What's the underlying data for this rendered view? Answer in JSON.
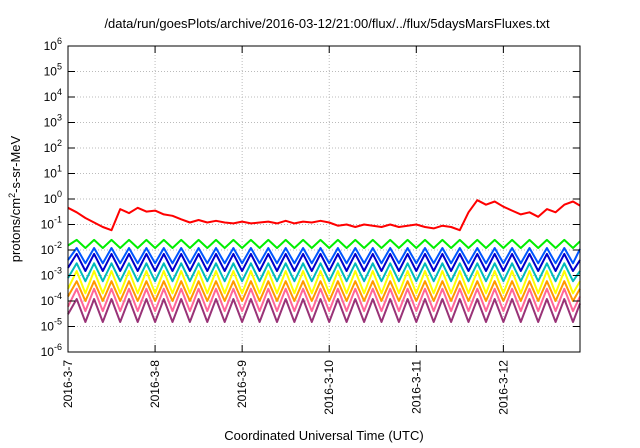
{
  "chart_data": {
    "type": "line",
    "title": "/data/run/goesPlots/archive/2016-03-12/21:00/flux/../flux/5daysMarsFluxes.txt",
    "xlabel": "Coordinated Universal Time (UTC)",
    "ylabel": {
      "prefix": "protons/cm",
      "sup": "2",
      "suffix": "-s-sr-MeV"
    },
    "y_scale": "log",
    "ylim_exp": [
      -6,
      6
    ],
    "y_ticks": [
      {
        "base": "10",
        "exp": "-6"
      },
      {
        "base": "10",
        "exp": "-5"
      },
      {
        "base": "10",
        "exp": "-4"
      },
      {
        "base": "10",
        "exp": "-3"
      },
      {
        "base": "10",
        "exp": "-2"
      },
      {
        "base": "10",
        "exp": "-1"
      },
      {
        "base": "10",
        "exp": "0"
      },
      {
        "base": "10",
        "exp": "1"
      },
      {
        "base": "10",
        "exp": "2"
      },
      {
        "base": "10",
        "exp": "3"
      },
      {
        "base": "10",
        "exp": "4"
      },
      {
        "base": "10",
        "exp": "5"
      },
      {
        "base": "10",
        "exp": "6"
      }
    ],
    "x_ticks": [
      "2016-3-7",
      "2016-3-8",
      "2016-3-9",
      "2016-3-10",
      "2016-3-11",
      "2016-3-12"
    ],
    "x_tick_values": [
      0,
      1,
      2,
      3,
      4,
      5
    ],
    "xlim": [
      0,
      5.88
    ],
    "grid": true,
    "legend": "none",
    "series": [
      {
        "color": "#ff0000",
        "x": [
          0.0,
          0.1,
          0.2,
          0.3,
          0.4,
          0.5,
          0.6,
          0.7,
          0.8,
          0.9,
          1.0,
          1.1,
          1.2,
          1.3,
          1.4,
          1.5,
          1.6,
          1.7,
          1.8,
          1.9,
          2.0,
          2.1,
          2.2,
          2.3,
          2.4,
          2.5,
          2.6,
          2.7,
          2.8,
          2.9,
          3.0,
          3.1,
          3.2,
          3.3,
          3.4,
          3.5,
          3.6,
          3.7,
          3.8,
          3.9,
          4.0,
          4.1,
          4.2,
          4.3,
          4.4,
          4.5,
          4.6,
          4.7,
          4.8,
          4.9,
          5.0,
          5.1,
          5.2,
          5.3,
          5.4,
          5.5,
          5.6,
          5.7,
          5.8,
          5.88
        ],
        "y": [
          0.45,
          0.3,
          0.18,
          0.12,
          0.08,
          0.06,
          0.4,
          0.28,
          0.45,
          0.32,
          0.35,
          0.25,
          0.22,
          0.16,
          0.12,
          0.15,
          0.12,
          0.14,
          0.12,
          0.11,
          0.13,
          0.11,
          0.12,
          0.13,
          0.11,
          0.14,
          0.11,
          0.13,
          0.12,
          0.14,
          0.12,
          0.09,
          0.1,
          0.08,
          0.1,
          0.09,
          0.08,
          0.1,
          0.08,
          0.09,
          0.1,
          0.08,
          0.07,
          0.09,
          0.08,
          0.06,
          0.3,
          0.9,
          0.6,
          0.8,
          0.5,
          0.35,
          0.25,
          0.3,
          0.2,
          0.4,
          0.3,
          0.6,
          0.8,
          0.55
        ]
      },
      {
        "color": "#00ee00",
        "x": [
          0.0,
          0.1,
          0.2,
          0.3,
          0.4,
          0.5,
          0.6,
          0.7,
          0.8,
          0.9,
          1.0,
          1.1,
          1.2,
          1.3,
          1.4,
          1.5,
          1.6,
          1.7,
          1.8,
          1.9,
          2.0,
          2.1,
          2.2,
          2.3,
          2.4,
          2.5,
          2.6,
          2.7,
          2.8,
          2.9,
          3.0,
          3.1,
          3.2,
          3.3,
          3.4,
          3.5,
          3.6,
          3.7,
          3.8,
          3.9,
          4.0,
          4.1,
          4.2,
          4.3,
          4.4,
          4.5,
          4.6,
          4.7,
          4.8,
          4.9,
          5.0,
          5.1,
          5.2,
          5.3,
          5.4,
          5.5,
          5.6,
          5.7,
          5.8,
          5.88
        ],
        "y": [
          0.015,
          0.025,
          0.012,
          0.025,
          0.012,
          0.025,
          0.012,
          0.025,
          0.012,
          0.025,
          0.012,
          0.025,
          0.012,
          0.025,
          0.012,
          0.025,
          0.012,
          0.025,
          0.012,
          0.025,
          0.012,
          0.025,
          0.012,
          0.025,
          0.012,
          0.025,
          0.012,
          0.025,
          0.012,
          0.025,
          0.012,
          0.025,
          0.012,
          0.025,
          0.012,
          0.025,
          0.012,
          0.025,
          0.012,
          0.025,
          0.012,
          0.025,
          0.012,
          0.025,
          0.012,
          0.025,
          0.012,
          0.025,
          0.012,
          0.025,
          0.012,
          0.025,
          0.012,
          0.025,
          0.012,
          0.025,
          0.012,
          0.025,
          0.012,
          0.022
        ]
      },
      {
        "color": "#0055ff",
        "x": [
          0.0,
          0.1,
          0.2,
          0.3,
          0.4,
          0.5,
          0.6,
          0.7,
          0.8,
          0.9,
          1.0,
          1.1,
          1.2,
          1.3,
          1.4,
          1.5,
          1.6,
          1.7,
          1.8,
          1.9,
          2.0,
          2.1,
          2.2,
          2.3,
          2.4,
          2.5,
          2.6,
          2.7,
          2.8,
          2.9,
          3.0,
          3.1,
          3.2,
          3.3,
          3.4,
          3.5,
          3.6,
          3.7,
          3.8,
          3.9,
          4.0,
          4.1,
          4.2,
          4.3,
          4.4,
          4.5,
          4.6,
          4.7,
          4.8,
          4.9,
          5.0,
          5.1,
          5.2,
          5.3,
          5.4,
          5.5,
          5.6,
          5.7,
          5.8,
          5.88
        ],
        "y": [
          0.004,
          0.012,
          0.003,
          0.012,
          0.003,
          0.012,
          0.003,
          0.012,
          0.003,
          0.012,
          0.003,
          0.012,
          0.003,
          0.012,
          0.003,
          0.012,
          0.003,
          0.012,
          0.003,
          0.012,
          0.003,
          0.012,
          0.003,
          0.012,
          0.003,
          0.012,
          0.003,
          0.012,
          0.003,
          0.012,
          0.003,
          0.012,
          0.003,
          0.012,
          0.003,
          0.012,
          0.003,
          0.012,
          0.003,
          0.012,
          0.003,
          0.012,
          0.003,
          0.012,
          0.003,
          0.012,
          0.003,
          0.012,
          0.003,
          0.012,
          0.003,
          0.012,
          0.003,
          0.012,
          0.003,
          0.012,
          0.003,
          0.012,
          0.003,
          0.011
        ]
      },
      {
        "color": "#0000cc",
        "x": [
          0.0,
          0.1,
          0.2,
          0.3,
          0.4,
          0.5,
          0.6,
          0.7,
          0.8,
          0.9,
          1.0,
          1.1,
          1.2,
          1.3,
          1.4,
          1.5,
          1.6,
          1.7,
          1.8,
          1.9,
          2.0,
          2.1,
          2.2,
          2.3,
          2.4,
          2.5,
          2.6,
          2.7,
          2.8,
          2.9,
          3.0,
          3.1,
          3.2,
          3.3,
          3.4,
          3.5,
          3.6,
          3.7,
          3.8,
          3.9,
          4.0,
          4.1,
          4.2,
          4.3,
          4.4,
          4.5,
          4.6,
          4.7,
          4.8,
          4.9,
          5.0,
          5.1,
          5.2,
          5.3,
          5.4,
          5.5,
          5.6,
          5.7,
          5.8,
          5.88
        ],
        "y": [
          0.002,
          0.007,
          0.0015,
          0.007,
          0.0015,
          0.007,
          0.0015,
          0.007,
          0.0015,
          0.007,
          0.0015,
          0.007,
          0.0015,
          0.007,
          0.0015,
          0.007,
          0.0015,
          0.007,
          0.0015,
          0.007,
          0.0015,
          0.007,
          0.0015,
          0.007,
          0.0015,
          0.007,
          0.0015,
          0.007,
          0.0015,
          0.007,
          0.0015,
          0.007,
          0.0015,
          0.007,
          0.0015,
          0.007,
          0.0015,
          0.007,
          0.0015,
          0.007,
          0.0015,
          0.007,
          0.0015,
          0.007,
          0.0015,
          0.007,
          0.0015,
          0.007,
          0.0015,
          0.007,
          0.0015,
          0.007,
          0.0015,
          0.007,
          0.0015,
          0.007,
          0.0015,
          0.007,
          0.0015,
          0.004
        ]
      },
      {
        "color": "#00bbbb",
        "x": [
          0.0,
          0.1,
          0.2,
          0.3,
          0.4,
          0.5,
          0.6,
          0.7,
          0.8,
          0.9,
          1.0,
          1.1,
          1.2,
          1.3,
          1.4,
          1.5,
          1.6,
          1.7,
          1.8,
          1.9,
          2.0,
          2.1,
          2.2,
          2.3,
          2.4,
          2.5,
          2.6,
          2.7,
          2.8,
          2.9,
          3.0,
          3.1,
          3.2,
          3.3,
          3.4,
          3.5,
          3.6,
          3.7,
          3.8,
          3.9,
          4.0,
          4.1,
          4.2,
          4.3,
          4.4,
          4.5,
          4.6,
          4.7,
          4.8,
          4.9,
          5.0,
          5.1,
          5.2,
          5.3,
          5.4,
          5.5,
          5.6,
          5.7,
          5.8,
          5.88
        ],
        "y": [
          0.0008,
          0.003,
          0.0006,
          0.003,
          0.0006,
          0.003,
          0.0006,
          0.003,
          0.0006,
          0.003,
          0.0006,
          0.003,
          0.0006,
          0.003,
          0.0006,
          0.003,
          0.0006,
          0.003,
          0.0006,
          0.003,
          0.0006,
          0.003,
          0.0006,
          0.003,
          0.0006,
          0.003,
          0.0006,
          0.003,
          0.0006,
          0.003,
          0.0006,
          0.003,
          0.0006,
          0.003,
          0.0006,
          0.003,
          0.0006,
          0.003,
          0.0006,
          0.003,
          0.0006,
          0.003,
          0.0006,
          0.003,
          0.0006,
          0.003,
          0.0006,
          0.003,
          0.0006,
          0.003,
          0.0006,
          0.003,
          0.0006,
          0.003,
          0.0006,
          0.003,
          0.0006,
          0.003,
          0.0006,
          0.0015
        ]
      },
      {
        "color": "#ffff00",
        "x": [
          0.0,
          0.1,
          0.2,
          0.3,
          0.4,
          0.5,
          0.6,
          0.7,
          0.8,
          0.9,
          1.0,
          1.1,
          1.2,
          1.3,
          1.4,
          1.5,
          1.6,
          1.7,
          1.8,
          1.9,
          2.0,
          2.1,
          2.2,
          2.3,
          2.4,
          2.5,
          2.6,
          2.7,
          2.8,
          2.9,
          3.0,
          3.1,
          3.2,
          3.3,
          3.4,
          3.5,
          3.6,
          3.7,
          3.8,
          3.9,
          4.0,
          4.1,
          4.2,
          4.3,
          4.4,
          4.5,
          4.6,
          4.7,
          4.8,
          4.9,
          5.0,
          5.1,
          5.2,
          5.3,
          5.4,
          5.5,
          5.6,
          5.7,
          5.8,
          5.88
        ],
        "y": [
          0.0003,
          0.0015,
          0.0002,
          0.0015,
          0.0002,
          0.0015,
          0.0002,
          0.0015,
          0.0002,
          0.0015,
          0.0002,
          0.0015,
          0.0002,
          0.0015,
          0.0002,
          0.0015,
          0.0002,
          0.0015,
          0.0002,
          0.0015,
          0.0002,
          0.0015,
          0.0002,
          0.0015,
          0.0002,
          0.0015,
          0.0002,
          0.0015,
          0.0002,
          0.0015,
          0.0002,
          0.0015,
          0.0002,
          0.0015,
          0.0002,
          0.0015,
          0.0002,
          0.0015,
          0.0002,
          0.0015,
          0.0002,
          0.0015,
          0.0002,
          0.0015,
          0.0002,
          0.0015,
          0.0002,
          0.0015,
          0.0002,
          0.0015,
          0.0002,
          0.0015,
          0.0002,
          0.0015,
          0.0002,
          0.0015,
          0.0002,
          0.0015,
          0.0002,
          0.0006
        ]
      },
      {
        "color": "#ff9900",
        "x": [
          0.0,
          0.1,
          0.2,
          0.3,
          0.4,
          0.5,
          0.6,
          0.7,
          0.8,
          0.9,
          1.0,
          1.1,
          1.2,
          1.3,
          1.4,
          1.5,
          1.6,
          1.7,
          1.8,
          1.9,
          2.0,
          2.1,
          2.2,
          2.3,
          2.4,
          2.5,
          2.6,
          2.7,
          2.8,
          2.9,
          3.0,
          3.1,
          3.2,
          3.3,
          3.4,
          3.5,
          3.6,
          3.7,
          3.8,
          3.9,
          4.0,
          4.1,
          4.2,
          4.3,
          4.4,
          4.5,
          4.6,
          4.7,
          4.8,
          4.9,
          5.0,
          5.1,
          5.2,
          5.3,
          5.4,
          5.5,
          5.6,
          5.7,
          5.8,
          5.88
        ],
        "y": [
          0.00015,
          0.0006,
          0.0001,
          0.0006,
          0.0001,
          0.0006,
          0.0001,
          0.0006,
          0.0001,
          0.0006,
          0.0001,
          0.0006,
          0.0001,
          0.0006,
          0.0001,
          0.0006,
          0.0001,
          0.0006,
          0.0001,
          0.0006,
          0.0001,
          0.0006,
          0.0001,
          0.0006,
          0.0001,
          0.0006,
          0.0001,
          0.0006,
          0.0001,
          0.0006,
          0.0001,
          0.0006,
          0.0001,
          0.0006,
          0.0001,
          0.0006,
          0.0001,
          0.0006,
          0.0001,
          0.0006,
          0.0001,
          0.0006,
          0.0001,
          0.0006,
          0.0001,
          0.0006,
          0.0001,
          0.0006,
          0.0001,
          0.0006,
          0.0001,
          0.0006,
          0.0001,
          0.0006,
          0.0001,
          0.0006,
          0.0001,
          0.0006,
          0.0001,
          0.0003
        ]
      },
      {
        "color": "#ff6699",
        "x": [
          0.0,
          0.1,
          0.2,
          0.3,
          0.4,
          0.5,
          0.6,
          0.7,
          0.8,
          0.9,
          1.0,
          1.1,
          1.2,
          1.3,
          1.4,
          1.5,
          1.6,
          1.7,
          1.8,
          1.9,
          2.0,
          2.1,
          2.2,
          2.3,
          2.4,
          2.5,
          2.6,
          2.7,
          2.8,
          2.9,
          3.0,
          3.1,
          3.2,
          3.3,
          3.4,
          3.5,
          3.6,
          3.7,
          3.8,
          3.9,
          4.0,
          4.1,
          4.2,
          4.3,
          4.4,
          4.5,
          4.6,
          4.7,
          4.8,
          4.9,
          5.0,
          5.1,
          5.2,
          5.3,
          5.4,
          5.5,
          5.6,
          5.7,
          5.8,
          5.88
        ],
        "y": [
          6e-05,
          0.0003,
          4e-05,
          0.0003,
          4e-05,
          0.0003,
          4e-05,
          0.0003,
          4e-05,
          0.0003,
          4e-05,
          0.0003,
          4e-05,
          0.0003,
          4e-05,
          0.0003,
          4e-05,
          0.0003,
          4e-05,
          0.0003,
          4e-05,
          0.0003,
          4e-05,
          0.0003,
          4e-05,
          0.0003,
          4e-05,
          0.0003,
          4e-05,
          0.0003,
          4e-05,
          0.0003,
          4e-05,
          0.0003,
          4e-05,
          0.0003,
          4e-05,
          0.0003,
          4e-05,
          0.0003,
          4e-05,
          0.0003,
          4e-05,
          0.0003,
          4e-05,
          0.0003,
          4e-05,
          0.0003,
          4e-05,
          0.0003,
          4e-05,
          0.0003,
          4e-05,
          0.0003,
          4e-05,
          0.0003,
          4e-05,
          0.0003,
          4e-05,
          0.00015
        ]
      },
      {
        "color": "#993377",
        "x": [
          0.0,
          0.1,
          0.2,
          0.3,
          0.4,
          0.5,
          0.6,
          0.7,
          0.8,
          0.9,
          1.0,
          1.1,
          1.2,
          1.3,
          1.4,
          1.5,
          1.6,
          1.7,
          1.8,
          1.9,
          2.0,
          2.1,
          2.2,
          2.3,
          2.4,
          2.5,
          2.6,
          2.7,
          2.8,
          2.9,
          3.0,
          3.1,
          3.2,
          3.3,
          3.4,
          3.5,
          3.6,
          3.7,
          3.8,
          3.9,
          4.0,
          4.1,
          4.2,
          4.3,
          4.4,
          4.5,
          4.6,
          4.7,
          4.8,
          4.9,
          5.0,
          5.1,
          5.2,
          5.3,
          5.4,
          5.5,
          5.6,
          5.7,
          5.8,
          5.88
        ],
        "y": [
          3e-05,
          0.00012,
          1.5e-05,
          0.00012,
          1.5e-05,
          0.00012,
          1.5e-05,
          0.00012,
          1.5e-05,
          0.00012,
          1.5e-05,
          0.00012,
          1.5e-05,
          0.00012,
          1.5e-05,
          0.00012,
          1.5e-05,
          0.00012,
          1.5e-05,
          0.00012,
          1.5e-05,
          0.00012,
          1.5e-05,
          0.00012,
          1.5e-05,
          0.00012,
          1.5e-05,
          0.00012,
          1.5e-05,
          0.00012,
          1.5e-05,
          0.00012,
          1.5e-05,
          0.00012,
          1.5e-05,
          0.00012,
          1.5e-05,
          0.00012,
          1.5e-05,
          0.00012,
          1.5e-05,
          0.00012,
          1.5e-05,
          0.00012,
          1.5e-05,
          0.00012,
          1.5e-05,
          0.00012,
          1.5e-05,
          0.00012,
          1.5e-05,
          0.00012,
          1.5e-05,
          0.00012,
          1.5e-05,
          0.00012,
          1.5e-05,
          0.00012,
          1.5e-05,
          8e-05
        ]
      }
    ]
  }
}
